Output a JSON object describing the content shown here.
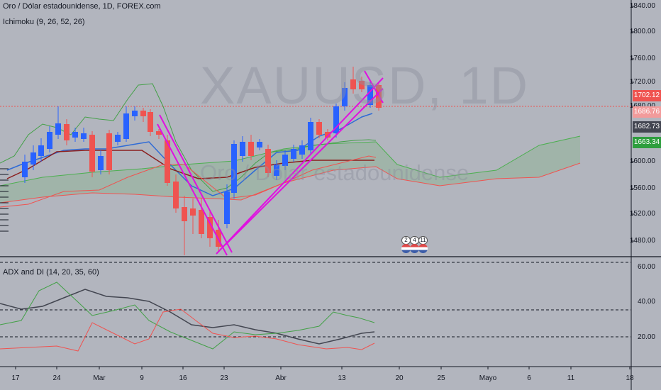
{
  "header": {
    "title": "Oro / Dólar estadounidense, 1D, FOREX.com",
    "indicator_ichimoku": "Ichimoku (9, 26, 52, 26)",
    "indicator_adx": "ADX and DI (14, 20, 35, 60)"
  },
  "watermark": {
    "symbol": "XAUUSD, 1D",
    "name": "Oro / Dólar estadounidense"
  },
  "price_axis": {
    "ticks": [
      "1840.00",
      "1800.00",
      "1760.00",
      "1720.00",
      "1680.00",
      "1600.00",
      "1560.00",
      "1520.00",
      "1480.00"
    ],
    "badges": [
      {
        "text": "1702.12",
        "color": "#ef5350"
      },
      {
        "text": "1686.76",
        "color": "#f29b9b"
      },
      {
        "text": "1682.73",
        "color": "#434651"
      },
      {
        "text": "1663.34",
        "color": "#2e9e3e"
      }
    ]
  },
  "adx_axis": {
    "ticks": [
      "60.00",
      "40.00",
      "20.00"
    ]
  },
  "date_axis": {
    "ticks": [
      "17",
      "24",
      "Mar",
      "9",
      "16",
      "23",
      "Abr",
      "13",
      "20",
      "25",
      "Mayo",
      "6",
      "11",
      "18"
    ]
  },
  "events": [
    "2",
    "4",
    "11"
  ],
  "colors": {
    "bull": "#2962ff",
    "bear": "#ef5350",
    "trendline": "#e010e0",
    "cloud": "rgba(76,175,80,0.18)",
    "background": "#b2b5be"
  }
}
